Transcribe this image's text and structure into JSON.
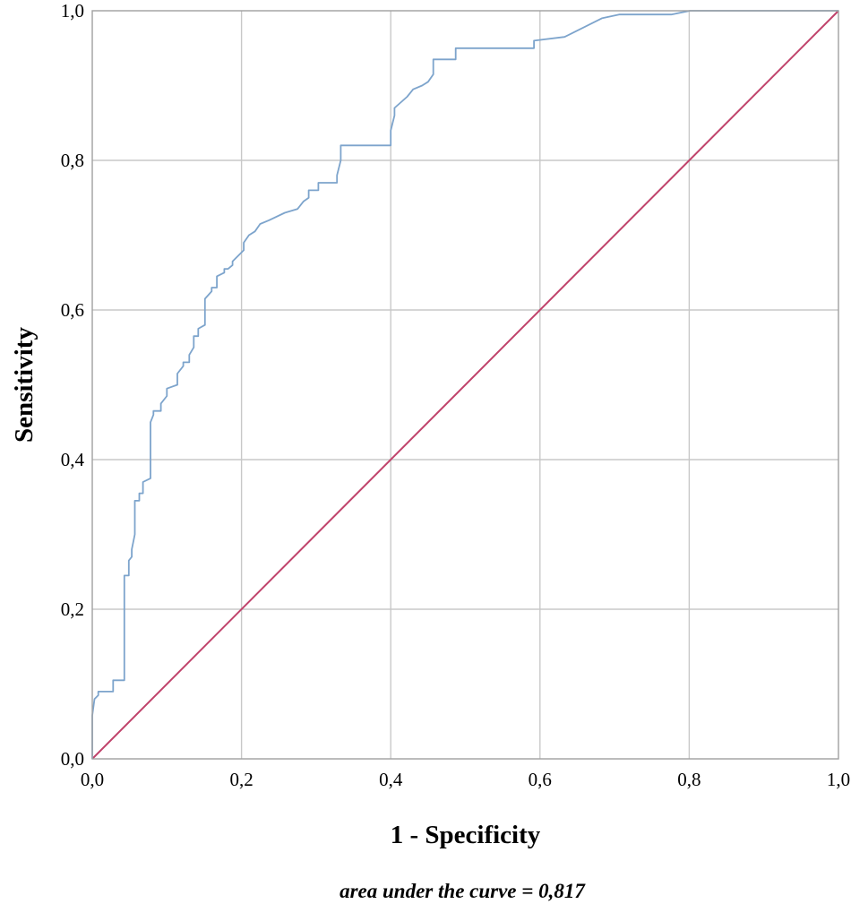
{
  "chart_data": {
    "type": "line",
    "xlabel": "1 - Specificity",
    "ylabel": "Sensitivity",
    "xlim": [
      0,
      1
    ],
    "ylim": [
      0,
      1
    ],
    "x_ticks": [
      "0,0",
      "0,2",
      "0,4",
      "0,6",
      "0,8",
      "1,0"
    ],
    "y_ticks": [
      "0,0",
      "0,2",
      "0,4",
      "0,6",
      "0,8",
      "1,0"
    ],
    "grid": true,
    "annotation": "area under the curve = 0,817",
    "colors": {
      "roc": "#7da4cc",
      "reference": "#c0436b",
      "grid": "#c8c8c8",
      "frame": "#a0a0a0"
    },
    "series": [
      {
        "x": [
          0.0,
          0.0,
          0.003,
          0.008,
          0.008,
          0.028,
          0.028,
          0.043,
          0.043,
          0.049,
          0.049,
          0.053,
          0.053,
          0.057,
          0.057,
          0.063,
          0.063,
          0.068,
          0.068,
          0.078,
          0.078,
          0.082,
          0.082,
          0.092,
          0.092,
          0.1,
          0.1,
          0.114,
          0.114,
          0.122,
          0.122,
          0.13,
          0.13,
          0.136,
          0.136,
          0.142,
          0.142,
          0.151,
          0.151,
          0.16,
          0.16,
          0.167,
          0.167,
          0.177,
          0.177,
          0.182,
          0.182,
          0.188,
          0.188,
          0.203,
          0.203,
          0.21,
          0.218,
          0.225,
          0.237,
          0.258,
          0.275,
          0.283,
          0.29,
          0.29,
          0.303,
          0.303,
          0.328,
          0.328,
          0.333,
          0.333,
          0.4,
          0.4,
          0.405,
          0.405,
          0.422,
          0.43,
          0.442,
          0.45,
          0.457,
          0.457,
          0.487,
          0.487,
          0.592,
          0.592,
          0.633,
          0.633,
          0.683,
          0.706,
          0.776,
          0.801,
          0.826,
          1.0
        ],
        "y": [
          0.0,
          0.058,
          0.08,
          0.085,
          0.09,
          0.09,
          0.105,
          0.105,
          0.245,
          0.245,
          0.265,
          0.27,
          0.28,
          0.3,
          0.345,
          0.345,
          0.355,
          0.355,
          0.37,
          0.375,
          0.45,
          0.46,
          0.465,
          0.465,
          0.475,
          0.485,
          0.495,
          0.5,
          0.515,
          0.525,
          0.53,
          0.53,
          0.54,
          0.55,
          0.565,
          0.565,
          0.575,
          0.58,
          0.615,
          0.625,
          0.63,
          0.63,
          0.645,
          0.65,
          0.655,
          0.655,
          0.655,
          0.66,
          0.665,
          0.68,
          0.69,
          0.7,
          0.705,
          0.715,
          0.72,
          0.73,
          0.735,
          0.745,
          0.75,
          0.76,
          0.76,
          0.77,
          0.77,
          0.78,
          0.8,
          0.82,
          0.82,
          0.84,
          0.86,
          0.87,
          0.885,
          0.895,
          0.9,
          0.905,
          0.915,
          0.935,
          0.935,
          0.95,
          0.95,
          0.96,
          0.965,
          0.965,
          0.99,
          0.995,
          0.995,
          1.0,
          1.0,
          1.0
        ]
      },
      {
        "x": [
          0,
          1
        ],
        "y": [
          0,
          1
        ]
      }
    ]
  }
}
